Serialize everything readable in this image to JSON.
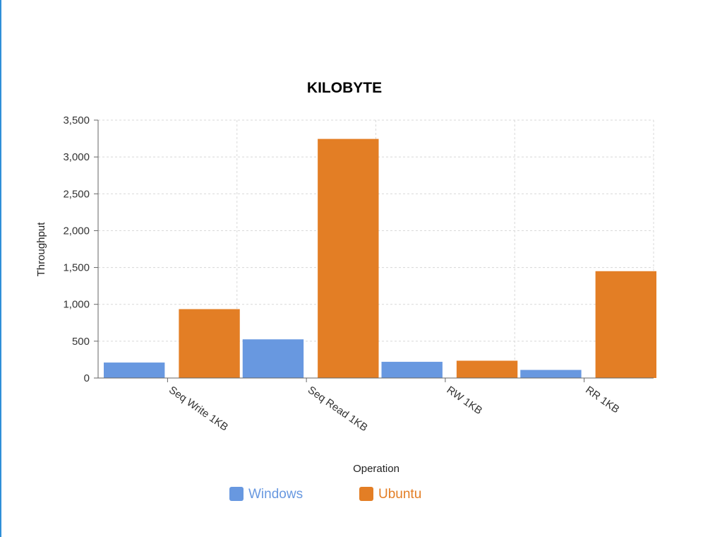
{
  "chart_data": {
    "type": "bar",
    "title": "KILOBYTE",
    "xlabel": "Operation",
    "ylabel": "Throughput",
    "categories": [
      "Seq Write 1KB",
      "Seq Read 1KB",
      "RW 1KB",
      "RR 1KB"
    ],
    "series": [
      {
        "name": "Windows",
        "color": "#6898e0",
        "values": [
          210,
          525,
          220,
          110
        ]
      },
      {
        "name": "Ubuntu",
        "color": "#e37e25",
        "values": [
          935,
          3245,
          235,
          1450
        ]
      }
    ],
    "ylim": [
      0,
      3500
    ],
    "yticks": [
      "0",
      "500",
      "1,000",
      "1,500",
      "2,000",
      "2,500",
      "3,000",
      "3,500"
    ],
    "ytick_values": [
      0,
      500,
      1000,
      1500,
      2000,
      2500,
      3000,
      3500
    ],
    "grid": true,
    "legend_position": "bottom"
  }
}
